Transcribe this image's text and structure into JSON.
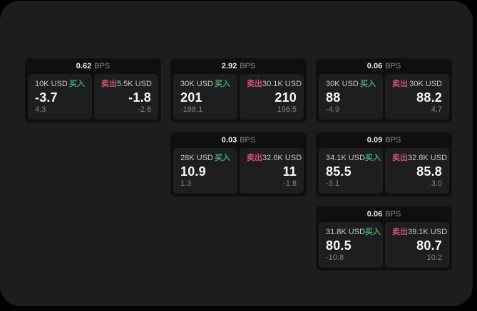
{
  "labels": {
    "bps_unit": "BPS",
    "buy": "买入",
    "sell": "卖出"
  },
  "colors": {
    "background": "#000000",
    "panel": "#1d1d1e",
    "card": "#0f0f10",
    "subcard": "#1e1e20",
    "buy_green": "#44a566",
    "sell_red": "#cf5665"
  },
  "cards": [
    {
      "bps": "0.62",
      "buy": {
        "amount": "10K USD",
        "price": "-3.7",
        "delta": "4.3"
      },
      "sell": {
        "amount": "5.5K USD",
        "price": "-1.8",
        "delta": "-2.6"
      }
    },
    {
      "bps": "2.92",
      "buy": {
        "amount": "30K USD",
        "price": "201",
        "delta": "-188.1"
      },
      "sell": {
        "amount": "30.1K USD",
        "price": "210",
        "delta": "196.5"
      }
    },
    {
      "bps": "0.06",
      "buy": {
        "amount": "30K USD",
        "price": "88",
        "delta": "-4.9"
      },
      "sell": {
        "amount": "30K USD",
        "price": "88.2",
        "delta": "4.7"
      }
    },
    {
      "bps": "0.03",
      "buy": {
        "amount": "28K USD",
        "price": "10.9",
        "delta": "1.3"
      },
      "sell": {
        "amount": "32.6K USD",
        "price": "11",
        "delta": "-1.8"
      }
    },
    {
      "bps": "0.09",
      "buy": {
        "amount": "34.1K USD",
        "price": "85.5",
        "delta": "-3.1"
      },
      "sell": {
        "amount": "32.8K USD",
        "price": "85.8",
        "delta": "3.0"
      }
    },
    {
      "bps": "0.06",
      "buy": {
        "amount": "31.8K USD",
        "price": "80.5",
        "delta": "-10.8"
      },
      "sell": {
        "amount": "39.1K USD",
        "price": "80.7",
        "delta": "10.2"
      }
    }
  ]
}
